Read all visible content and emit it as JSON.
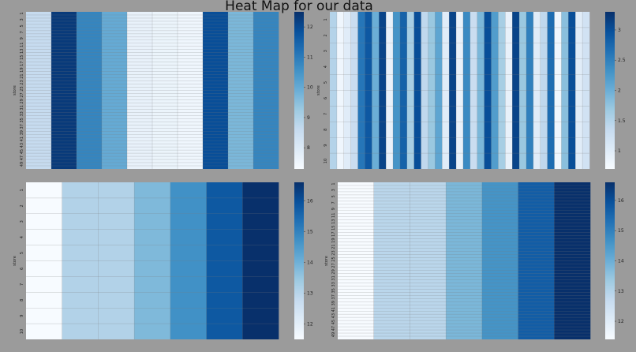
{
  "figure": {
    "title": "Heat Map for our data"
  },
  "colors": {
    "background": "#9b9b9b",
    "cmap": [
      "#f7fbff",
      "#deebf7",
      "#c6dbef",
      "#9ecae1",
      "#6baed6",
      "#4292c6",
      "#2171b5",
      "#08519c",
      "#08306b"
    ],
    "gridline": "#7a7a7a"
  },
  "chart_data": [
    {
      "type": "heatmap",
      "position": "top-left",
      "ylabel": "store",
      "yticks": [
        "1",
        "3",
        "5",
        "7",
        "9",
        "11",
        "13",
        "15",
        "17",
        "19",
        "21",
        "23",
        "25",
        "27",
        "29",
        "31",
        "33",
        "35",
        "37",
        "39",
        "41",
        "43",
        "45",
        "47",
        "49"
      ],
      "n_rows": 50,
      "column_values": [
        8.6,
        12.3,
        10.8,
        10.0,
        7.7,
        7.6,
        7.5,
        11.9,
        9.7,
        10.8
      ],
      "colorbar": {
        "ticks": [
          9,
          10,
          11,
          12,
          8
        ],
        "vmin": 7.3,
        "vmax": 12.5
      }
    },
    {
      "type": "heatmap",
      "position": "top-right",
      "ylabel": "store",
      "yticks": [
        "1",
        "2",
        "3",
        "4",
        "5",
        "6",
        "7",
        "8",
        "9",
        "10"
      ],
      "n_rows": 10,
      "column_values": [
        1.5,
        0.8,
        1.0,
        1.3,
        2.6,
        2.9,
        2.0,
        3.1,
        0.9,
        2.3,
        2.8,
        1.6,
        3.0,
        1.4,
        1.7,
        2.1,
        1.0,
        3.1,
        0.9,
        2.4,
        1.3,
        1.9,
        3.0,
        2.2,
        1.6,
        0.9,
        3.1,
        1.7,
        2.5,
        1.0,
        1.4,
        2.7,
        0.8,
        1.8,
        3.0,
        1.0,
        1.2
      ],
      "colorbar": {
        "ticks": [
          1.0,
          1.5,
          2.0,
          2.5,
          3.0
        ],
        "vmin": 0.7,
        "vmax": 3.3
      }
    },
    {
      "type": "heatmap",
      "position": "bottom-left",
      "ylabel": "store",
      "yticks": [
        "1",
        "2",
        "3",
        "4",
        "5",
        "6",
        "7",
        "8",
        "9",
        "10"
      ],
      "n_rows": 10,
      "column_values": [
        11.5,
        13.1,
        13.1,
        13.8,
        14.7,
        15.8,
        16.6
      ],
      "colorbar": {
        "ticks": [
          12,
          13,
          14,
          15,
          16
        ],
        "vmin": 11.5,
        "vmax": 16.6
      }
    },
    {
      "type": "heatmap",
      "position": "bottom-right",
      "ylabel": "store",
      "yticks": [
        "1",
        "3",
        "5",
        "7",
        "9",
        "11",
        "13",
        "15",
        "17",
        "19",
        "21",
        "23",
        "25",
        "27",
        "29",
        "31",
        "33",
        "35",
        "37",
        "39",
        "41",
        "43",
        "45",
        "47",
        "49"
      ],
      "n_rows": 50,
      "column_values": [
        11.4,
        12.9,
        12.9,
        13.8,
        14.6,
        15.7,
        16.6
      ],
      "colorbar": {
        "ticks": [
          12,
          13,
          14,
          15,
          16
        ],
        "vmin": 11.4,
        "vmax": 16.6
      }
    }
  ]
}
